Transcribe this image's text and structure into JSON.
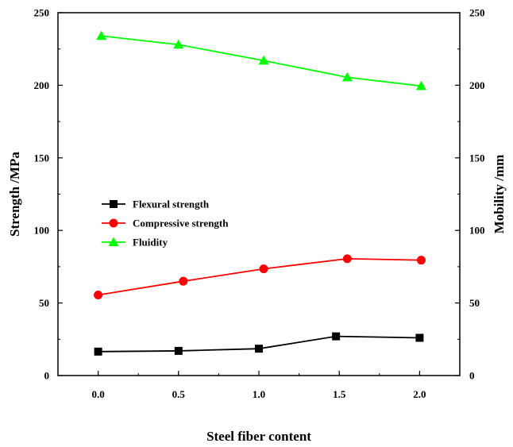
{
  "chart_data": {
    "type": "line",
    "x": [
      0.0,
      0.5,
      1.0,
      1.5,
      2.0
    ],
    "xlabel": "Steel fiber content",
    "ylabel": "Strength /MPa",
    "y2label": "Mobility /mm",
    "xlim": [
      -0.25,
      2.25
    ],
    "ylim": [
      0,
      250
    ],
    "y2lim": [
      0,
      250
    ],
    "x_ticks": [
      "0.0",
      "0.5",
      "1.0",
      "1.5",
      "2.0"
    ],
    "y_ticks": [
      "0",
      "50",
      "100",
      "150",
      "200",
      "250"
    ],
    "y2_ticks": [
      "0",
      "50",
      "100",
      "150",
      "200",
      "250"
    ],
    "grid": false,
    "legend_position": "center-left",
    "series": [
      {
        "name": "Flexural strength",
        "color": "#000000",
        "marker": "square",
        "x": [
          0.0,
          0.5,
          1.0,
          1.48,
          2.0
        ],
        "values": [
          16.5,
          17,
          18.5,
          27,
          26
        ]
      },
      {
        "name": "Compressive strength",
        "color": "#ff0000",
        "marker": "circle",
        "x": [
          0.0,
          0.53,
          1.03,
          1.55,
          2.01
        ],
        "values": [
          55.5,
          65,
          73.5,
          80.5,
          79.5
        ]
      },
      {
        "name": "Fluidity",
        "color": "#00ff00",
        "marker": "triangle",
        "x": [
          0.02,
          0.5,
          1.03,
          1.55,
          2.01
        ],
        "values": [
          234,
          228,
          217,
          205.5,
          199.5
        ]
      }
    ]
  }
}
